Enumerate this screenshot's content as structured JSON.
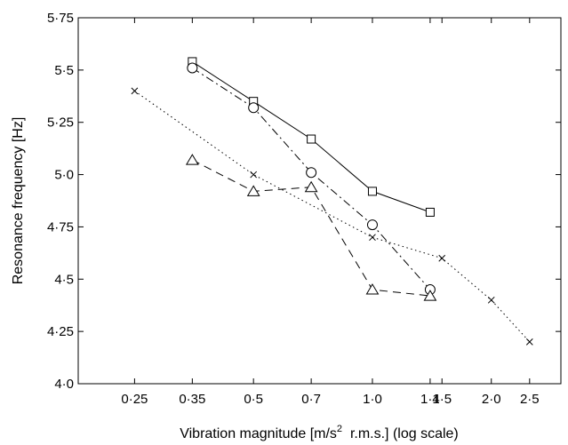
{
  "chart_data": {
    "type": "line",
    "title": "",
    "xlabel": {
      "prefix": "Vibration magnitude [m/s",
      "superscript": "2",
      "suffix": "  r.m.s.] (log scale)"
    },
    "ylabel": "Resonance frequency [Hz]",
    "x_scale": "log",
    "xlim": [
      0.18,
      3.0
    ],
    "ylim": [
      4.0,
      5.75
    ],
    "grid": false,
    "legend": "none",
    "x_ticks": [
      {
        "value": 0.25,
        "label": "0·25"
      },
      {
        "value": 0.35,
        "label": "0·35"
      },
      {
        "value": 0.5,
        "label": "0·5"
      },
      {
        "value": 0.7,
        "label": "0·7"
      },
      {
        "value": 1.0,
        "label": "1·0"
      },
      {
        "value": 1.4,
        "label": "1·4"
      },
      {
        "value": 1.5,
        "label": "1·5"
      },
      {
        "value": 2.0,
        "label": "2·0"
      },
      {
        "value": 2.5,
        "label": "2·5"
      }
    ],
    "y_ticks": [
      {
        "value": 4.0,
        "label": "4·0"
      },
      {
        "value": 4.25,
        "label": "4·25"
      },
      {
        "value": 4.5,
        "label": "4·5"
      },
      {
        "value": 4.75,
        "label": "4·75"
      },
      {
        "value": 5.0,
        "label": "5·0"
      },
      {
        "value": 5.25,
        "label": "5·25"
      },
      {
        "value": 5.5,
        "label": "5·5"
      },
      {
        "value": 5.75,
        "label": "5·75"
      }
    ],
    "series": [
      {
        "marker": "square",
        "line_style": "solid",
        "points": [
          [
            0.35,
            5.54
          ],
          [
            0.5,
            5.35
          ],
          [
            0.7,
            5.17
          ],
          [
            1.0,
            4.92
          ],
          [
            1.4,
            4.82
          ]
        ]
      },
      {
        "marker": "circle",
        "line_style": "dash-dot",
        "points": [
          [
            0.35,
            5.51
          ],
          [
            0.5,
            5.32
          ],
          [
            0.7,
            5.01
          ],
          [
            1.0,
            4.76
          ],
          [
            1.4,
            4.45
          ]
        ]
      },
      {
        "marker": "triangle",
        "line_style": "dashed",
        "points": [
          [
            0.35,
            5.07
          ],
          [
            0.5,
            4.92
          ],
          [
            0.7,
            4.94
          ],
          [
            1.0,
            4.45
          ],
          [
            1.4,
            4.42
          ]
        ]
      },
      {
        "marker": "cross",
        "line_style": "dotted",
        "points": [
          [
            0.25,
            5.4
          ],
          [
            0.5,
            5.0
          ],
          [
            1.0,
            4.7
          ],
          [
            1.5,
            4.6
          ],
          [
            2.0,
            4.4
          ],
          [
            2.5,
            4.2
          ]
        ]
      }
    ],
    "colors": {
      "line": "#000000",
      "background": "#ffffff"
    }
  }
}
